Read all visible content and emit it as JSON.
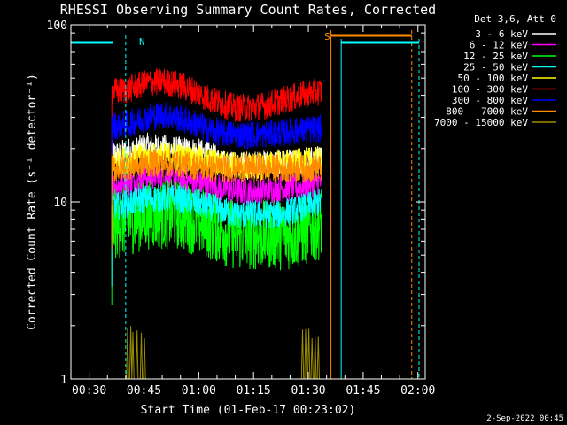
{
  "chart_data": {
    "type": "line",
    "title": "RHESSI Observing Summary Count Rates, Corrected",
    "xlabel": "Start Time (01-Feb-17 00:23:02)",
    "ylabel": "Corrected Count Rate (s⁻¹ detector⁻¹)",
    "yscale": "log",
    "ylim": [
      1,
      100
    ],
    "xlim_minutes": [
      25,
      122
    ],
    "x_ticks": [
      {
        "t": 30,
        "label": "00:30"
      },
      {
        "t": 45,
        "label": "00:45"
      },
      {
        "t": 60,
        "label": "01:00"
      },
      {
        "t": 75,
        "label": "01:15"
      },
      {
        "t": 90,
        "label": "01:30"
      },
      {
        "t": 105,
        "label": "01:45"
      },
      {
        "t": 120,
        "label": "02:00"
      }
    ],
    "y_ticks": [
      {
        "v": 1,
        "label": "1"
      },
      {
        "v": 10,
        "label": "10"
      },
      {
        "v": 100,
        "label": "100"
      }
    ],
    "legend": {
      "header": "Det 3,6, Att 0",
      "placement": "outside-right"
    },
    "series": [
      {
        "name": "3 - 6 keV",
        "color": "#ffffff",
        "t": [
          38,
          42,
          46,
          50,
          54,
          58,
          62,
          66,
          70,
          74,
          78,
          82,
          86,
          90,
          93.5
        ],
        "values": [
          18.5,
          19.5,
          20.5,
          20,
          19.5,
          19.5,
          18.5,
          17,
          16,
          16,
          16.5,
          16.5,
          16.5,
          17,
          17.5
        ]
      },
      {
        "name": "6 - 12 keV",
        "color": "#ff00ff",
        "t": [
          38,
          42,
          46,
          50,
          54,
          58,
          62,
          66,
          70,
          74,
          78,
          82,
          86,
          90,
          93.5
        ],
        "values": [
          12.5,
          13,
          14,
          14,
          13.5,
          13,
          12.5,
          12,
          11.5,
          11.5,
          11.5,
          12,
          12,
          12.5,
          13
        ]
      },
      {
        "name": "12 - 25 keV",
        "color": "#00ff00",
        "t": [
          38,
          42,
          46,
          50,
          54,
          58,
          62,
          66,
          70,
          74,
          78,
          82,
          86,
          90,
          93.5
        ],
        "values": [
          7.5,
          8,
          8.5,
          8.5,
          8.5,
          8,
          7.5,
          7,
          6.5,
          6.5,
          6.5,
          6.5,
          6.5,
          7,
          7.5
        ]
      },
      {
        "name": "25 - 50 keV",
        "color": "#00ffff",
        "t": [
          38,
          42,
          46,
          50,
          54,
          58,
          62,
          66,
          70,
          74,
          78,
          82,
          86,
          90,
          93.5
        ],
        "values": [
          9.5,
          10,
          10.5,
          10.5,
          10.5,
          10,
          9.5,
          9,
          8.5,
          8.5,
          8.5,
          8.5,
          9,
          9.5,
          10
        ]
      },
      {
        "name": "50 - 100 keV",
        "color": "#ffff00",
        "t": [
          38,
          42,
          46,
          50,
          54,
          58,
          62,
          66,
          70,
          74,
          78,
          82,
          86,
          90,
          93.5
        ],
        "values": [
          17,
          17.5,
          18,
          18,
          18,
          17.5,
          17,
          16.5,
          16,
          16,
          16,
          16.5,
          16.5,
          17,
          17
        ]
      },
      {
        "name": "100 - 300 keV",
        "color": "#ff0000",
        "t": [
          38,
          42,
          46,
          50,
          54,
          58,
          62,
          66,
          70,
          74,
          78,
          82,
          86,
          90,
          93.5
        ],
        "values": [
          42,
          44,
          47,
          48,
          46,
          43,
          39,
          36,
          34,
          34,
          35,
          37,
          39,
          41,
          42
        ]
      },
      {
        "name": "300 - 800 keV",
        "color": "#0000ff",
        "t": [
          38,
          42,
          46,
          50,
          54,
          58,
          62,
          66,
          70,
          74,
          78,
          82,
          86,
          90,
          93.5
        ],
        "values": [
          27,
          28,
          30,
          31,
          30,
          28,
          26,
          24.5,
          24,
          24,
          24,
          24.5,
          25,
          25.5,
          26
        ]
      },
      {
        "name": "800 - 7000 keV",
        "color": "#ff8c00",
        "t": [
          38,
          42,
          46,
          50,
          54,
          58,
          62,
          66,
          70,
          74,
          78,
          82,
          86,
          90,
          93.5
        ],
        "values": [
          15.5,
          16,
          16.5,
          16.5,
          16.5,
          16,
          15.5,
          15.5,
          15.5,
          15.5,
          15.5,
          15.5,
          15.5,
          15.5,
          15.5
        ]
      },
      {
        "name": "7000 - 15000 keV",
        "color": "#9c8c00",
        "t": [
          38,
          42,
          46,
          50,
          54,
          58,
          62,
          66,
          70,
          74,
          78,
          82,
          86,
          90,
          93.5
        ],
        "values": [
          1,
          1,
          1,
          1,
          1,
          1,
          1,
          1,
          1,
          1,
          1,
          1,
          1,
          1,
          1
        ]
      }
    ],
    "annotations": {
      "night_label": "N",
      "saa_label": "S",
      "footer_date": "2-Sep-2022 00:45"
    }
  }
}
